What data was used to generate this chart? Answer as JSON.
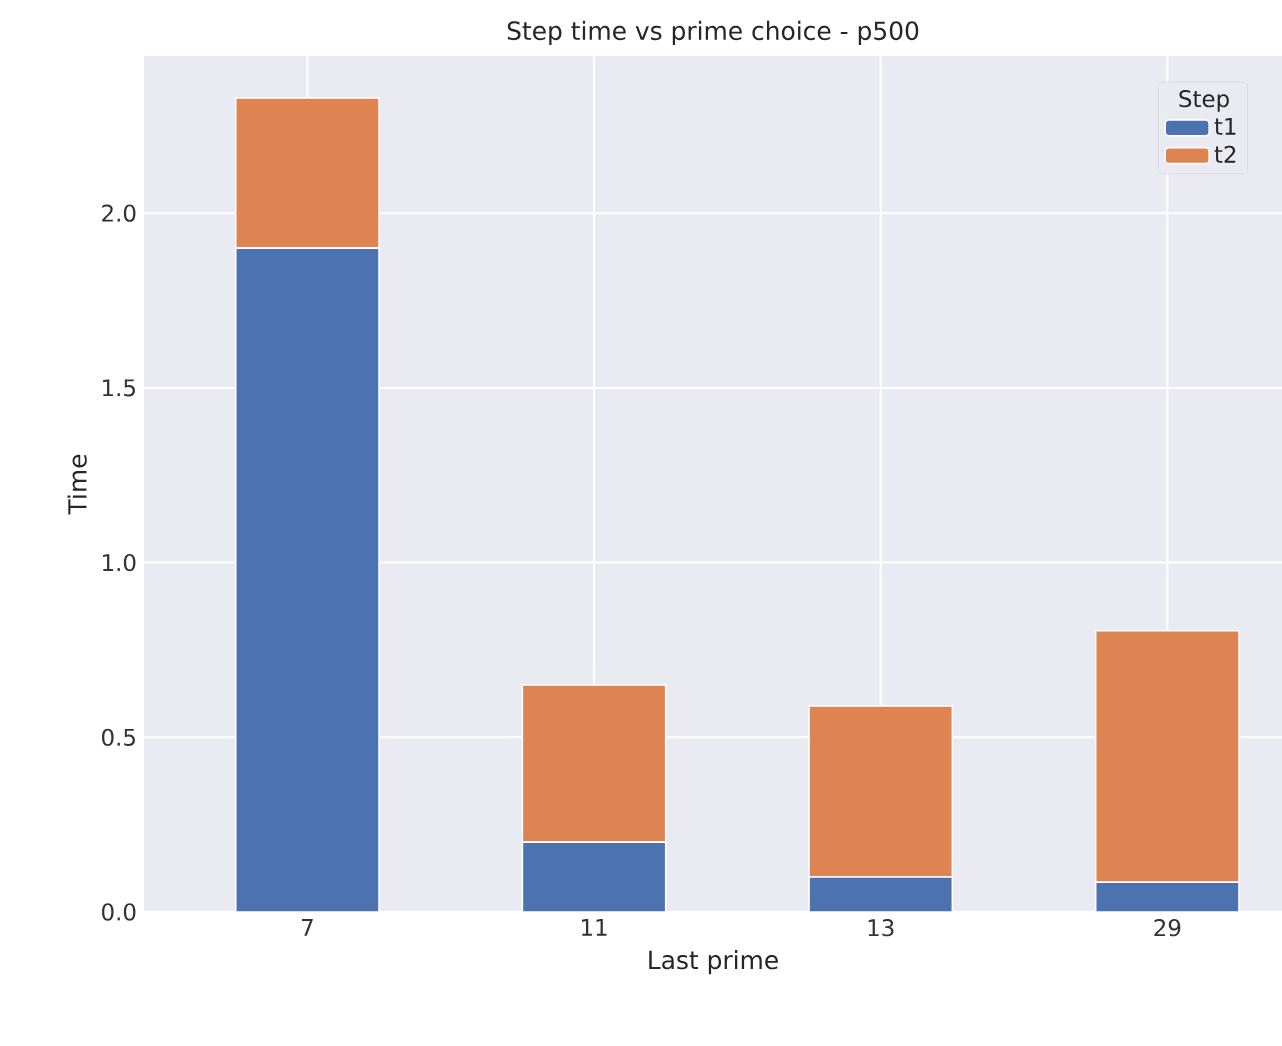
{
  "chart_data": {
    "type": "bar",
    "stacked": true,
    "title": "Step time vs prime choice - p500",
    "xlabel": "Last prime",
    "ylabel": "Time",
    "legend_title": "Step",
    "legend": "top right",
    "grid": true,
    "categories": [
      "7",
      "11",
      "13",
      "29"
    ],
    "series": [
      {
        "name": "t1",
        "color": "#4c72b0",
        "values": [
          1.9,
          0.2,
          0.1,
          0.085
        ]
      },
      {
        "name": "t2",
        "color": "#dd8452",
        "values": [
          0.43,
          0.45,
          0.49,
          0.72
        ]
      }
    ],
    "ylim": [
      0,
      2.45
    ],
    "yticks": [
      {
        "value": 0,
        "label": "0.0"
      },
      {
        "value": 0.5,
        "label": "0.5"
      },
      {
        "value": 1,
        "label": "1.0"
      },
      {
        "value": 1.5,
        "label": "1.5"
      },
      {
        "value": 2,
        "label": "2.0"
      }
    ]
  }
}
